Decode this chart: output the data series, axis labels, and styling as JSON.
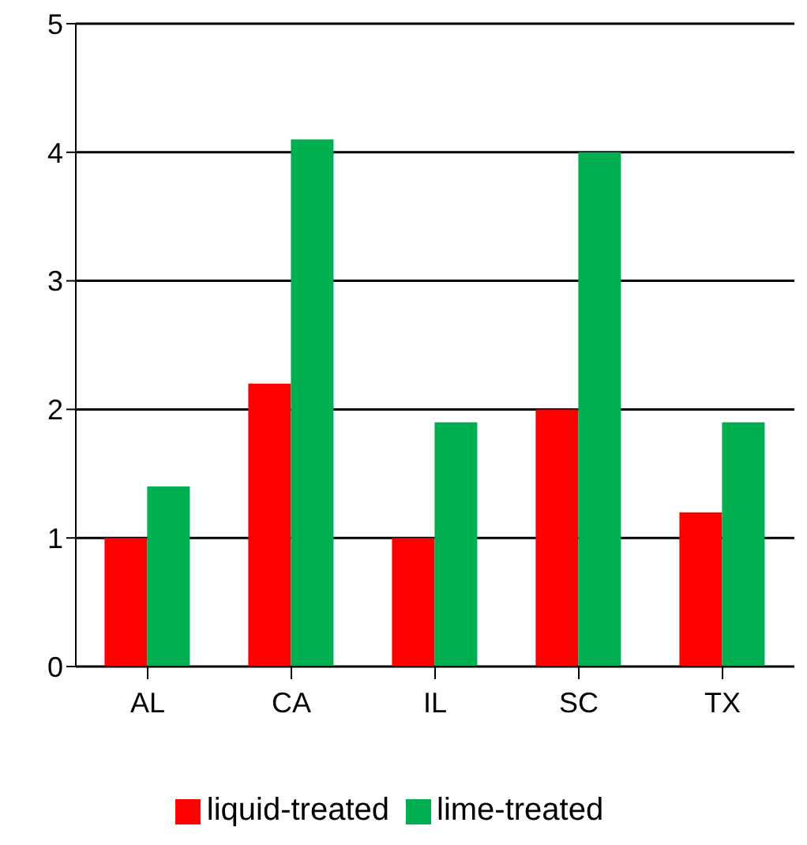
{
  "chart_data": {
    "type": "bar",
    "categories": [
      "AL",
      "CA",
      "IL",
      "SC",
      "TX"
    ],
    "series": [
      {
        "name": "liquid-treated",
        "color": "#ff0000",
        "values": [
          1,
          2.2,
          1,
          2,
          1.2
        ]
      },
      {
        "name": "lime-treated",
        "color": "#00b050",
        "values": [
          1.4,
          4.1,
          1.9,
          4,
          1.9
        ]
      }
    ],
    "ylim": [
      0,
      5
    ],
    "yticks": [
      0,
      1,
      2,
      3,
      4,
      5
    ],
    "grid": "y",
    "legend": "bottom"
  }
}
